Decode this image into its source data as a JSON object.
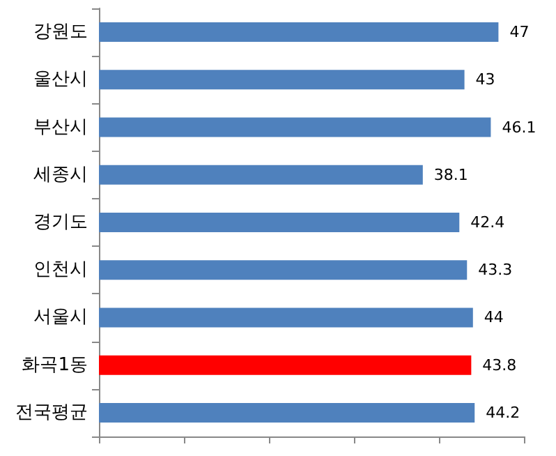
{
  "chart_data": {
    "type": "bar",
    "orientation": "horizontal",
    "categories": [
      "강원도",
      "울산시",
      "부산시",
      "세종시",
      "경기도",
      "인천시",
      "서울시",
      "화곡1동",
      "전국평균"
    ],
    "values": [
      47,
      43,
      46.1,
      38.1,
      42.4,
      43.3,
      44,
      43.8,
      44.2
    ],
    "colors": [
      "#4f81bd",
      "#4f81bd",
      "#4f81bd",
      "#4f81bd",
      "#4f81bd",
      "#4f81bd",
      "#4f81bd",
      "#ff0000",
      "#4f81bd"
    ],
    "xlim": [
      0,
      50
    ],
    "xticks": [
      {
        "value": 0,
        "label": null
      },
      {
        "value": 10,
        "label": null
      },
      {
        "value": 20,
        "label": null
      },
      {
        "value": 30,
        "label": null
      },
      {
        "value": 40,
        "label": null
      },
      {
        "value": 50,
        "label": null
      }
    ],
    "tick_labels": "y",
    "data_labels": true
  }
}
